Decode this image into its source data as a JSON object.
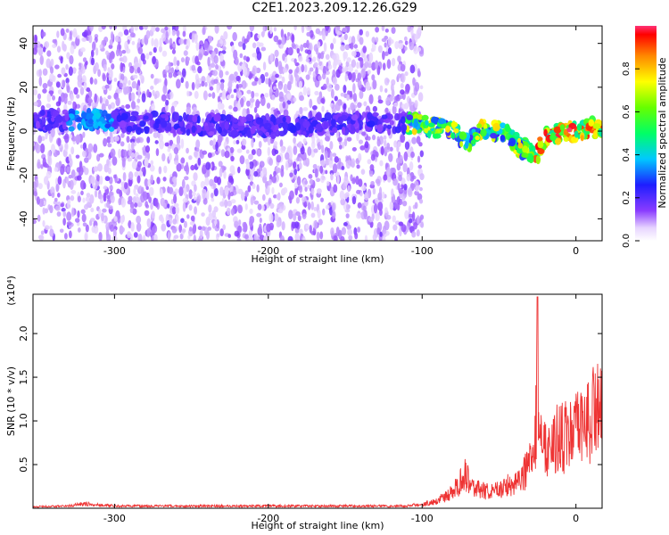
{
  "title": "C2E1.2023.209.12.26.G29",
  "chart_data": [
    {
      "type": "heatmap",
      "title": "C2E1.2023.209.12.26.G29",
      "xlabel": "Height of straight line (km)",
      "ylabel": "Frequency (Hz)",
      "xlim": [
        -353,
        17
      ],
      "ylim": [
        -50,
        48
      ],
      "xticks": [
        -300,
        -200,
        -100,
        0
      ],
      "yticks": [
        -40,
        -20,
        0,
        20,
        40
      ],
      "colorbar": {
        "label": "Normalized spectral amplitude",
        "range": [
          0,
          1
        ],
        "ticks": [
          0.0,
          0.2,
          0.4,
          0.6,
          0.8
        ],
        "colormap": "rainbow (white → purple → blue → cyan → green → yellow → red)"
      },
      "features": {
        "noise_region_x": [
          -353,
          -100
        ],
        "signal_track": [
          {
            "x": -350,
            "y": 5
          },
          {
            "x": -310,
            "y": 5
          },
          {
            "x": -250,
            "y": 3
          },
          {
            "x": -200,
            "y": 2
          },
          {
            "x": -130,
            "y": 4
          },
          {
            "x": -100,
            "y": 3
          },
          {
            "x": -80,
            "y": 0
          },
          {
            "x": -70,
            "y": -5
          },
          {
            "x": -60,
            "y": 2
          },
          {
            "x": -45,
            "y": -2
          },
          {
            "x": -35,
            "y": -8
          },
          {
            "x": -25,
            "y": -10
          },
          {
            "x": -20,
            "y": -2
          },
          {
            "x": -10,
            "y": -1
          },
          {
            "x": 0,
            "y": 0
          },
          {
            "x": 17,
            "y": 2
          }
        ]
      }
    },
    {
      "type": "line",
      "xlabel": "Height of straight line (km)",
      "ylabel": "SNR (10 * v/v)",
      "yscale_label": "(x10⁴)",
      "xlim": [
        -353,
        17
      ],
      "ylim": [
        0,
        2.45
      ],
      "xticks": [
        -300,
        -200,
        -100,
        0
      ],
      "yticks": [
        0.5,
        1.0,
        1.5,
        2.0
      ],
      "ytick_labels": [
        "0.5",
        "1.0",
        "1.5",
        "2.0"
      ],
      "series": [
        {
          "color": "#ee3333",
          "x": [
            -353,
            -330,
            -320,
            -300,
            -250,
            -200,
            -150,
            -110,
            -100,
            -90,
            -80,
            -72,
            -65,
            -55,
            -45,
            -38,
            -32,
            -28,
            -26,
            -25,
            -24,
            -22,
            -18,
            -10,
            -5,
            0,
            5,
            10,
            13,
            17
          ],
          "y": [
            0.02,
            0.03,
            0.06,
            0.03,
            0.03,
            0.03,
            0.03,
            0.03,
            0.06,
            0.12,
            0.25,
            0.55,
            0.3,
            0.25,
            0.35,
            0.45,
            0.6,
            0.8,
            1.3,
            2.4,
            1.7,
            0.9,
            1.05,
            1.1,
            1.15,
            1.2,
            1.3,
            1.45,
            1.65,
            1.45
          ]
        }
      ]
    }
  ]
}
